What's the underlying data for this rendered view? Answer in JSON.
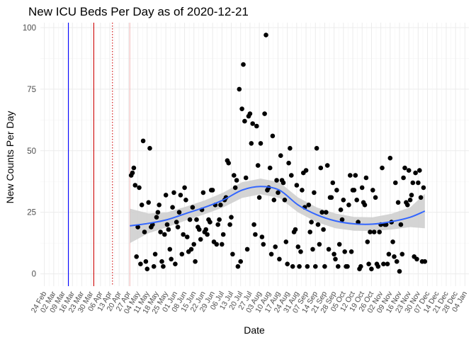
{
  "chart_data": {
    "type": "scatter",
    "title": "New ICU Beds Per Day as of 2020-12-21",
    "xlabel": "Date",
    "ylabel": "New Counts Per Day",
    "ylim": [
      -5,
      102
    ],
    "xlim": [
      "2020-02-21",
      "2021-01-07"
    ],
    "y_ticks": [
      0,
      25,
      50,
      75,
      100
    ],
    "x_ticks": [
      "2020-02-24",
      "2020-03-02",
      "2020-03-09",
      "2020-03-16",
      "2020-03-23",
      "2020-03-30",
      "2020-04-06",
      "2020-04-13",
      "2020-04-20",
      "2020-04-27",
      "2020-05-04",
      "2020-05-11",
      "2020-05-18",
      "2020-05-25",
      "2020-06-01",
      "2020-06-08",
      "2020-06-15",
      "2020-06-22",
      "2020-06-29",
      "2020-07-06",
      "2020-07-13",
      "2020-07-20",
      "2020-07-27",
      "2020-08-03",
      "2020-08-10",
      "2020-08-17",
      "2020-08-24",
      "2020-08-31",
      "2020-09-07",
      "2020-09-14",
      "2020-09-21",
      "2020-09-28",
      "2020-10-05",
      "2020-10-12",
      "2020-10-19",
      "2020-10-26",
      "2020-11-02",
      "2020-11-09",
      "2020-11-16",
      "2020-11-23",
      "2020-11-30",
      "2020-12-07",
      "2020-12-14",
      "2020-12-21",
      "2020-12-28",
      "2021-01-04"
    ],
    "x_tick_labels": [
      "24 Feb",
      "02 Mar",
      "09 Mar",
      "16 Mar",
      "23 Mar",
      "30 Mar",
      "06 Apr",
      "13 Apr",
      "20 Apr",
      "27 Apr",
      "04 May",
      "11 May",
      "18 May",
      "25 May",
      "01 Jun",
      "08 Jun",
      "15 Jun",
      "22 Jun",
      "29 Jun",
      "06 Jul",
      "13 Jul",
      "20 Jul",
      "27 Jul",
      "03 Aug",
      "10 Aug",
      "17 Aug",
      "24 Aug",
      "31 Aug",
      "07 Sep",
      "14 Sep",
      "21 Sep",
      "28 Sep",
      "05 Oct",
      "12 Oct",
      "19 Oct",
      "26 Oct",
      "02 Nov",
      "09 Nov",
      "16 Nov",
      "23 Nov",
      "30 Nov",
      "07 Dec",
      "14 Dec",
      "21 Dec",
      "28 Dec",
      "04 Jan"
    ],
    "grid": true,
    "legend": "none",
    "vertical_lines": [
      {
        "x": "2020-03-13",
        "color": "#0000ff",
        "style": "solid"
      },
      {
        "x": "2020-04-01",
        "color": "#cc0000",
        "style": "solid"
      },
      {
        "x": "2020-04-15",
        "color": "#cc0000",
        "style": "dotted"
      },
      {
        "x": "2020-04-28",
        "color": "#f2b8b8",
        "style": "solid"
      }
    ],
    "point_color": "#000000",
    "smooth_color": "#3366ff",
    "ribbon_color": "#cccccc",
    "points": [
      [
        "2020-04-29",
        40
      ],
      [
        "2020-04-30",
        41
      ],
      [
        "2020-05-01",
        43
      ],
      [
        "2020-05-02",
        36
      ],
      [
        "2020-05-03",
        7
      ],
      [
        "2020-05-04",
        19
      ],
      [
        "2020-05-05",
        35
      ],
      [
        "2020-05-06",
        4
      ],
      [
        "2020-05-07",
        28
      ],
      [
        "2020-05-08",
        54
      ],
      [
        "2020-05-09",
        17
      ],
      [
        "2020-05-10",
        5
      ],
      [
        "2020-05-11",
        2
      ],
      [
        "2020-05-12",
        29
      ],
      [
        "2020-05-13",
        51
      ],
      [
        "2020-05-14",
        19
      ],
      [
        "2020-05-15",
        20
      ],
      [
        "2020-05-16",
        3
      ],
      [
        "2020-05-17",
        8
      ],
      [
        "2020-05-18",
        23
      ],
      [
        "2020-05-19",
        25
      ],
      [
        "2020-05-20",
        28
      ],
      [
        "2020-05-21",
        17
      ],
      [
        "2020-05-22",
        5
      ],
      [
        "2020-05-23",
        3
      ],
      [
        "2020-05-24",
        16
      ],
      [
        "2020-05-25",
        32
      ],
      [
        "2020-05-26",
        20
      ],
      [
        "2020-05-27",
        18
      ],
      [
        "2020-05-28",
        10
      ],
      [
        "2020-05-29",
        6
      ],
      [
        "2020-05-30",
        27
      ],
      [
        "2020-05-31",
        33
      ],
      [
        "2020-06-01",
        4
      ],
      [
        "2020-06-02",
        21
      ],
      [
        "2020-06-03",
        19
      ],
      [
        "2020-06-04",
        25
      ],
      [
        "2020-06-05",
        32
      ],
      [
        "2020-06-06",
        8
      ],
      [
        "2020-06-07",
        16
      ],
      [
        "2020-06-08",
        35
      ],
      [
        "2020-06-09",
        30
      ],
      [
        "2020-06-10",
        15
      ],
      [
        "2020-06-11",
        9
      ],
      [
        "2020-06-12",
        22
      ],
      [
        "2020-06-13",
        10
      ],
      [
        "2020-06-14",
        27
      ],
      [
        "2020-06-15",
        12
      ],
      [
        "2020-06-16",
        5
      ],
      [
        "2020-06-17",
        22
      ],
      [
        "2020-06-18",
        19
      ],
      [
        "2020-06-19",
        18
      ],
      [
        "2020-06-20",
        14
      ],
      [
        "2020-06-21",
        26
      ],
      [
        "2020-06-22",
        33
      ],
      [
        "2020-06-23",
        17
      ],
      [
        "2020-06-24",
        18
      ],
      [
        "2020-06-25",
        16
      ],
      [
        "2020-06-26",
        22
      ],
      [
        "2020-06-27",
        21
      ],
      [
        "2020-06-28",
        34
      ],
      [
        "2020-06-29",
        34
      ],
      [
        "2020-06-30",
        13
      ],
      [
        "2020-07-01",
        28
      ],
      [
        "2020-07-02",
        12
      ],
      [
        "2020-07-03",
        20
      ],
      [
        "2020-07-04",
        22
      ],
      [
        "2020-07-05",
        28
      ],
      [
        "2020-07-06",
        12
      ],
      [
        "2020-07-07",
        16
      ],
      [
        "2020-07-08",
        30
      ],
      [
        "2020-07-09",
        31
      ],
      [
        "2020-07-10",
        46
      ],
      [
        "2020-07-11",
        45
      ],
      [
        "2020-07-12",
        20
      ],
      [
        "2020-07-13",
        23
      ],
      [
        "2020-07-14",
        8
      ],
      [
        "2020-07-15",
        40
      ],
      [
        "2020-07-16",
        35
      ],
      [
        "2020-07-17",
        38
      ],
      [
        "2020-07-18",
        3
      ],
      [
        "2020-07-19",
        75
      ],
      [
        "2020-07-20",
        5
      ],
      [
        "2020-07-21",
        67
      ],
      [
        "2020-07-22",
        85
      ],
      [
        "2020-07-23",
        62
      ],
      [
        "2020-07-24",
        39
      ],
      [
        "2020-07-25",
        10
      ],
      [
        "2020-07-26",
        64
      ],
      [
        "2020-07-27",
        65
      ],
      [
        "2020-07-28",
        53
      ],
      [
        "2020-07-29",
        61
      ],
      [
        "2020-07-30",
        20
      ],
      [
        "2020-07-31",
        16
      ],
      [
        "2020-08-01",
        60
      ],
      [
        "2020-08-02",
        44
      ],
      [
        "2020-08-03",
        31
      ],
      [
        "2020-08-04",
        53
      ],
      [
        "2020-08-05",
        15
      ],
      [
        "2020-08-06",
        12
      ],
      [
        "2020-08-07",
        65
      ],
      [
        "2020-08-08",
        97
      ],
      [
        "2020-08-09",
        34
      ],
      [
        "2020-08-10",
        35
      ],
      [
        "2020-08-11",
        43
      ],
      [
        "2020-08-12",
        8
      ],
      [
        "2020-08-13",
        56
      ],
      [
        "2020-08-14",
        30
      ],
      [
        "2020-08-15",
        11
      ],
      [
        "2020-08-16",
        38
      ],
      [
        "2020-08-17",
        33
      ],
      [
        "2020-08-18",
        6
      ],
      [
        "2020-08-19",
        48
      ],
      [
        "2020-08-20",
        38
      ],
      [
        "2020-08-21",
        37
      ],
      [
        "2020-08-22",
        30
      ],
      [
        "2020-08-23",
        13
      ],
      [
        "2020-08-24",
        4
      ],
      [
        "2020-08-25",
        45
      ],
      [
        "2020-08-26",
        51
      ],
      [
        "2020-08-27",
        40
      ],
      [
        "2020-08-28",
        3
      ],
      [
        "2020-08-29",
        17
      ],
      [
        "2020-08-30",
        18
      ],
      [
        "2020-08-31",
        36
      ],
      [
        "2020-09-01",
        11
      ],
      [
        "2020-09-02",
        3
      ],
      [
        "2020-09-03",
        9
      ],
      [
        "2020-09-04",
        34
      ],
      [
        "2020-09-05",
        41
      ],
      [
        "2020-09-06",
        27
      ],
      [
        "2020-09-07",
        42
      ],
      [
        "2020-09-08",
        3
      ],
      [
        "2020-09-09",
        28
      ],
      [
        "2020-09-10",
        17
      ],
      [
        "2020-09-11",
        21
      ],
      [
        "2020-09-12",
        10
      ],
      [
        "2020-09-13",
        33
      ],
      [
        "2020-09-14",
        3
      ],
      [
        "2020-09-15",
        51
      ],
      [
        "2020-09-16",
        20
      ],
      [
        "2020-09-17",
        12
      ],
      [
        "2020-09-18",
        43
      ],
      [
        "2020-09-19",
        25
      ],
      [
        "2020-09-20",
        18
      ],
      [
        "2020-09-21",
        3
      ],
      [
        "2020-09-22",
        25
      ],
      [
        "2020-09-23",
        44
      ],
      [
        "2020-09-24",
        10
      ],
      [
        "2020-09-25",
        31
      ],
      [
        "2020-09-26",
        31
      ],
      [
        "2020-09-27",
        37
      ],
      [
        "2020-09-28",
        8
      ],
      [
        "2020-09-29",
        6
      ],
      [
        "2020-09-30",
        34
      ],
      [
        "2020-10-01",
        3
      ],
      [
        "2020-10-02",
        12
      ],
      [
        "2020-10-03",
        26
      ],
      [
        "2020-10-04",
        22
      ],
      [
        "2020-10-05",
        30
      ],
      [
        "2020-10-06",
        9
      ],
      [
        "2020-10-07",
        3
      ],
      [
        "2020-10-08",
        3
      ],
      [
        "2020-10-09",
        28
      ],
      [
        "2020-10-10",
        40
      ],
      [
        "2020-10-11",
        9
      ],
      [
        "2020-10-12",
        34
      ],
      [
        "2020-10-13",
        34
      ],
      [
        "2020-10-14",
        40
      ],
      [
        "2020-10-15",
        30
      ],
      [
        "2020-10-16",
        21
      ],
      [
        "2020-10-17",
        2
      ],
      [
        "2020-10-18",
        3
      ],
      [
        "2020-10-19",
        35
      ],
      [
        "2020-10-20",
        29
      ],
      [
        "2020-10-21",
        28
      ],
      [
        "2020-10-22",
        39
      ],
      [
        "2020-10-23",
        13
      ],
      [
        "2020-10-24",
        4
      ],
      [
        "2020-10-25",
        17
      ],
      [
        "2020-10-26",
        2
      ],
      [
        "2020-10-27",
        34
      ],
      [
        "2020-10-28",
        17
      ],
      [
        "2020-10-29",
        31
      ],
      [
        "2020-10-30",
        4
      ],
      [
        "2020-10-31",
        3
      ],
      [
        "2020-11-01",
        17
      ],
      [
        "2020-11-02",
        20
      ],
      [
        "2020-11-03",
        43
      ],
      [
        "2020-11-04",
        4
      ],
      [
        "2020-11-05",
        20
      ],
      [
        "2020-11-06",
        20
      ],
      [
        "2020-11-07",
        4
      ],
      [
        "2020-11-08",
        8
      ],
      [
        "2020-11-09",
        47
      ],
      [
        "2020-11-10",
        21
      ],
      [
        "2020-11-11",
        13
      ],
      [
        "2020-11-12",
        7
      ],
      [
        "2020-11-13",
        37
      ],
      [
        "2020-11-14",
        5
      ],
      [
        "2020-11-15",
        29
      ],
      [
        "2020-11-16",
        1
      ],
      [
        "2020-11-17",
        20
      ],
      [
        "2020-11-18",
        8
      ],
      [
        "2020-11-19",
        39
      ],
      [
        "2020-11-20",
        43
      ],
      [
        "2020-11-21",
        29
      ],
      [
        "2020-11-22",
        28
      ],
      [
        "2020-11-23",
        42
      ],
      [
        "2020-11-24",
        30
      ],
      [
        "2020-11-25",
        32
      ],
      [
        "2020-11-26",
        37
      ],
      [
        "2020-11-27",
        7
      ],
      [
        "2020-11-28",
        41
      ],
      [
        "2020-11-29",
        6
      ],
      [
        "2020-11-30",
        37
      ],
      [
        "2020-12-01",
        42
      ],
      [
        "2020-12-02",
        31
      ],
      [
        "2020-12-03",
        5
      ],
      [
        "2020-12-04",
        35
      ],
      [
        "2020-12-05",
        5
      ]
    ],
    "smooth": [
      [
        "2020-04-28",
        19.5
      ],
      [
        "2020-05-12",
        20.5
      ],
      [
        "2020-05-26",
        22
      ],
      [
        "2020-06-09",
        24.5
      ],
      [
        "2020-06-23",
        27
      ],
      [
        "2020-07-07",
        30
      ],
      [
        "2020-07-21",
        34
      ],
      [
        "2020-08-04",
        35.5
      ],
      [
        "2020-08-18",
        34
      ],
      [
        "2020-09-01",
        28
      ],
      [
        "2020-09-15",
        24
      ],
      [
        "2020-09-29",
        21.5
      ],
      [
        "2020-10-13",
        20.3
      ],
      [
        "2020-10-27",
        20.2
      ],
      [
        "2020-11-10",
        21.2
      ],
      [
        "2020-11-24",
        23
      ],
      [
        "2020-12-05",
        25.5
      ]
    ],
    "ribbon_halfwidth": [
      7,
      4,
      3,
      2.8,
      2.8,
      3,
      3.2,
      3.2,
      3.2,
      3,
      3,
      3,
      2.8,
      2.8,
      3.2,
      4,
      7
    ]
  }
}
